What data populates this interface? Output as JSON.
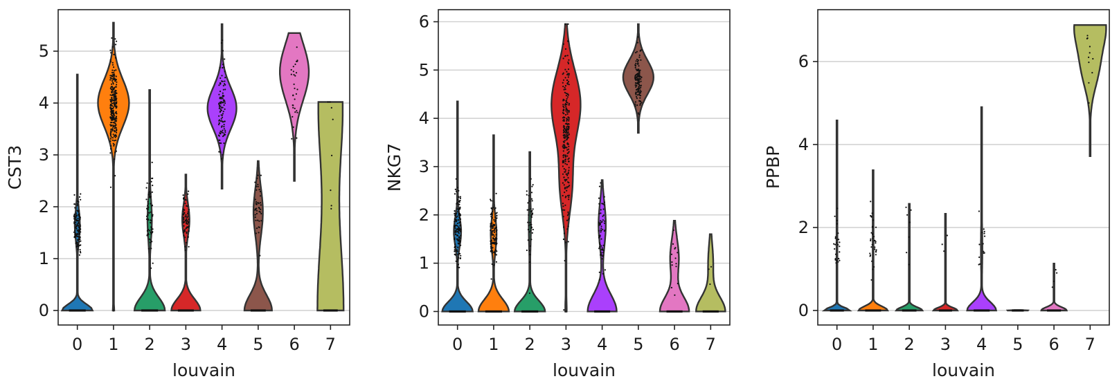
{
  "chart_data": [
    {
      "type": "violin",
      "title": "",
      "xlabel": "louvain",
      "ylabel": "CST3",
      "categories": [
        "0",
        "1",
        "2",
        "3",
        "4",
        "5",
        "6",
        "7"
      ],
      "yticks": [
        "0",
        "1",
        "2",
        "3",
        "4",
        "5"
      ],
      "ylim": [
        -0.28,
        5.8
      ],
      "grid": "y",
      "violins": [
        {
          "category": "0",
          "color": "#1f77b4",
          "max": 4.55,
          "modes": [
            {
              "y": 0,
              "w": 0.42,
              "s": 0.12
            },
            {
              "y": 1.65,
              "w": 0.07,
              "s": 0.3
            }
          ],
          "dots": {
            "center": 1.65,
            "spread": 0.25,
            "count": 130
          }
        },
        {
          "category": "1",
          "color": "#ff7f0e",
          "max": 5.55,
          "modes": [
            {
              "y": 4.0,
              "w": 0.43,
              "s": 0.45
            },
            {
              "y": 0,
              "w": 0.02,
              "s": 0.1
            }
          ],
          "dots": {
            "center": 3.95,
            "spread": 0.45,
            "count": 280
          }
        },
        {
          "category": "2",
          "color": "#279e68",
          "max": 4.25,
          "modes": [
            {
              "y": 0,
              "w": 0.42,
              "s": 0.25
            },
            {
              "y": 1.75,
              "w": 0.06,
              "s": 0.4
            }
          ],
          "dots": {
            "center": 1.8,
            "spread": 0.35,
            "count": 70
          }
        },
        {
          "category": "3",
          "color": "#d62728",
          "max": 2.62,
          "modes": [
            {
              "y": 0,
              "w": 0.4,
              "s": 0.22
            },
            {
              "y": 1.75,
              "w": 0.1,
              "s": 0.3
            }
          ],
          "dots": {
            "center": 1.75,
            "spread": 0.22,
            "count": 70
          }
        },
        {
          "category": "4",
          "color": "#aa40fc",
          "max": 5.52,
          "min": 2.35,
          "modes": [
            {
              "y": 3.9,
              "w": 0.4,
              "s": 0.4
            }
          ],
          "dots": {
            "center": 3.85,
            "spread": 0.45,
            "count": 110
          }
        },
        {
          "category": "5",
          "color": "#8c564b",
          "max": 2.88,
          "modes": [
            {
              "y": 0,
              "w": 0.38,
              "s": 0.3
            },
            {
              "y": 1.9,
              "w": 0.13,
              "s": 0.45
            }
          ],
          "dots": {
            "center": 1.9,
            "spread": 0.4,
            "count": 45
          }
        },
        {
          "category": "6",
          "color": "#e377c2",
          "max": 5.35,
          "min": 2.5,
          "modes": [
            {
              "y": 4.6,
              "w": 0.4,
              "s": 0.55
            }
          ],
          "dots": {
            "center": 4.3,
            "spread": 0.6,
            "count": 30
          }
        },
        {
          "category": "7",
          "color": "#b5bd61",
          "max": 4.02,
          "min": 0,
          "modes": [
            {
              "y": 0,
              "w": 0.36,
              "s": 1.6
            },
            {
              "y": 4.0,
              "w": 0.32,
              "s": 1.2
            }
          ],
          "dots": {
            "center": 2.8,
            "spread": 1.1,
            "count": 8
          }
        }
      ]
    },
    {
      "type": "violin",
      "title": "",
      "xlabel": "louvain",
      "ylabel": "NKG7",
      "categories": [
        "0",
        "1",
        "2",
        "3",
        "4",
        "5",
        "6",
        "7"
      ],
      "yticks": [
        "0",
        "1",
        "2",
        "3",
        "4",
        "5",
        "6"
      ],
      "ylim": [
        -0.28,
        6.25
      ],
      "grid": "y",
      "violins": [
        {
          "category": "0",
          "color": "#1f77b4",
          "max": 4.35,
          "modes": [
            {
              "y": 0,
              "w": 0.42,
              "s": 0.2
            },
            {
              "y": 1.65,
              "w": 0.1,
              "s": 0.3
            }
          ],
          "dots": {
            "center": 1.7,
            "spread": 0.4,
            "count": 150
          }
        },
        {
          "category": "1",
          "color": "#ff7f0e",
          "max": 3.65,
          "modes": [
            {
              "y": 0,
              "w": 0.42,
              "s": 0.25
            },
            {
              "y": 1.6,
              "w": 0.08,
              "s": 0.35
            }
          ],
          "dots": {
            "center": 1.6,
            "spread": 0.35,
            "count": 110
          }
        },
        {
          "category": "2",
          "color": "#279e68",
          "max": 3.3,
          "modes": [
            {
              "y": 0,
              "w": 0.42,
              "s": 0.22
            },
            {
              "y": 1.8,
              "w": 0.03,
              "s": 0.5
            }
          ],
          "dots": {
            "center": 1.9,
            "spread": 0.45,
            "count": 45
          }
        },
        {
          "category": "3",
          "color": "#d62728",
          "max": 5.95,
          "modes": [
            {
              "y": 4.3,
              "w": 0.4,
              "s": 0.7
            },
            {
              "y": 2.6,
              "w": 0.16,
              "s": 0.6
            },
            {
              "y": 0,
              "w": 0.02,
              "s": 0.3
            }
          ],
          "dots": {
            "center": 3.6,
            "spread": 0.9,
            "count": 260
          }
        },
        {
          "category": "4",
          "color": "#aa40fc",
          "max": 2.72,
          "modes": [
            {
              "y": 0,
              "w": 0.4,
              "s": 0.35
            },
            {
              "y": 1.8,
              "w": 0.1,
              "s": 0.45
            }
          ],
          "dots": {
            "center": 1.6,
            "spread": 0.45,
            "count": 65
          }
        },
        {
          "category": "5",
          "color": "#8c564b",
          "max": 5.95,
          "min": 3.7,
          "modes": [
            {
              "y": 4.85,
              "w": 0.42,
              "s": 0.35
            }
          ],
          "dots": {
            "center": 4.8,
            "spread": 0.35,
            "count": 140
          }
        },
        {
          "category": "6",
          "color": "#e377c2",
          "max": 1.88,
          "modes": [
            {
              "y": 0,
              "w": 0.4,
              "s": 0.3
            },
            {
              "y": 1.1,
              "w": 0.12,
              "s": 0.4
            }
          ],
          "dots": {
            "center": 1.0,
            "spread": 0.3,
            "count": 14
          }
        },
        {
          "category": "7",
          "color": "#b5bd61",
          "max": 1.6,
          "modes": [
            {
              "y": 0,
              "w": 0.4,
              "s": 0.3
            },
            {
              "y": 1.0,
              "w": 0.07,
              "s": 0.4
            }
          ],
          "dots": {
            "center": 0.8,
            "spread": 0.3,
            "count": 3
          }
        }
      ]
    },
    {
      "type": "violin",
      "title": "",
      "xlabel": "louvain",
      "ylabel": "PPBP",
      "categories": [
        "0",
        "1",
        "2",
        "3",
        "4",
        "5",
        "6",
        "7"
      ],
      "yticks": [
        "0",
        "2",
        "4",
        "6"
      ],
      "ytick_values": [
        0,
        2,
        4,
        6
      ],
      "ylim": [
        -0.35,
        7.25
      ],
      "grid": "y",
      "violins": [
        {
          "category": "0",
          "color": "#1f77b4",
          "max": 4.58,
          "modes": [
            {
              "y": 0,
              "w": 0.35,
              "s": 0.07
            }
          ],
          "dots": {
            "center": 1.6,
            "spread": 0.3,
            "count": 25
          }
        },
        {
          "category": "1",
          "color": "#ff7f0e",
          "max": 3.38,
          "modes": [
            {
              "y": 0,
              "w": 0.4,
              "s": 0.1
            }
          ],
          "dots": {
            "center": 1.6,
            "spread": 0.4,
            "count": 35
          }
        },
        {
          "category": "2",
          "color": "#279e68",
          "max": 2.57,
          "modes": [
            {
              "y": 0,
              "w": 0.36,
              "s": 0.08
            }
          ],
          "dots": {
            "center": 1.9,
            "spread": 0.4,
            "count": 8
          }
        },
        {
          "category": "3",
          "color": "#d62728",
          "max": 2.33,
          "modes": [
            {
              "y": 0,
              "w": 0.33,
              "s": 0.07
            }
          ],
          "dots": {
            "center": 1.8,
            "spread": 0.3,
            "count": 3
          }
        },
        {
          "category": "4",
          "color": "#aa40fc",
          "max": 4.9,
          "modes": [
            {
              "y": 0,
              "w": 0.4,
              "s": 0.2
            },
            {
              "y": 1.5,
              "w": 0.02,
              "s": 0.6
            }
          ],
          "dots": {
            "center": 1.5,
            "spread": 0.5,
            "count": 14
          }
        },
        {
          "category": "5",
          "color": "#8c564b",
          "max": 0.01,
          "modes": [
            {
              "y": 0,
              "w": 0.3,
              "s": 0.005
            }
          ],
          "dots": {
            "center": 0,
            "spread": 0,
            "count": 0
          }
        },
        {
          "category": "6",
          "color": "#e377c2",
          "max": 1.13,
          "modes": [
            {
              "y": 0,
              "w": 0.35,
              "s": 0.08
            }
          ],
          "dots": {
            "center": 0.8,
            "spread": 0.2,
            "count": 4
          }
        },
        {
          "category": "7",
          "color": "#b5bd61",
          "max": 6.88,
          "min": 3.72,
          "modes": [
            {
              "y": 6.88,
              "w": 0.42,
              "s": 0.55
            },
            {
              "y": 5.8,
              "w": 0.2,
              "s": 0.5
            }
          ],
          "dots": {
            "center": 6.1,
            "spread": 0.5,
            "count": 11
          }
        }
      ]
    }
  ]
}
